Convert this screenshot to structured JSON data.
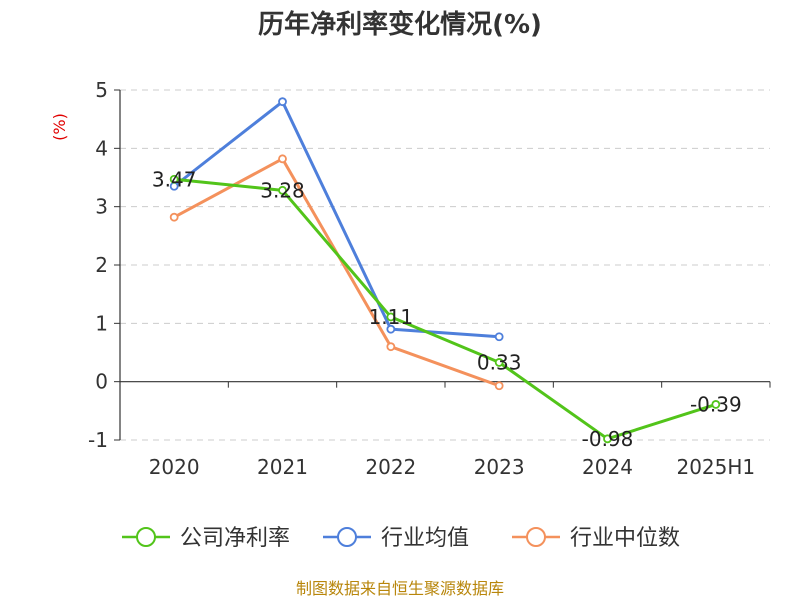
{
  "chart_data": {
    "type": "line",
    "title": "历年净利率变化情况(%)",
    "ylabel": "(%)",
    "categories": [
      "2020",
      "2021",
      "2022",
      "2023",
      "2024",
      "2025H1"
    ],
    "ylim": [
      -1,
      5
    ],
    "yticks": [
      "5",
      "4",
      "3",
      "2",
      "1",
      "0",
      "-1"
    ],
    "grid": true,
    "legend_position": "bottom",
    "series": [
      {
        "name": "公司净利率",
        "color": "#52c41a",
        "values": [
          3.47,
          3.28,
          1.11,
          0.33,
          -0.98,
          -0.39
        ],
        "labels": [
          "3.47",
          "3.28",
          "1.11",
          "0.33",
          "-0.98",
          "-0.39"
        ]
      },
      {
        "name": "行业均值",
        "color": "#4e7fdb",
        "values": [
          3.35,
          4.8,
          0.9,
          0.77,
          null,
          null
        ]
      },
      {
        "name": "行业中位数",
        "color": "#f4915c",
        "values": [
          2.82,
          3.82,
          0.6,
          -0.07,
          null,
          null
        ]
      }
    ],
    "source": "制图数据来自恒生聚源数据库"
  }
}
